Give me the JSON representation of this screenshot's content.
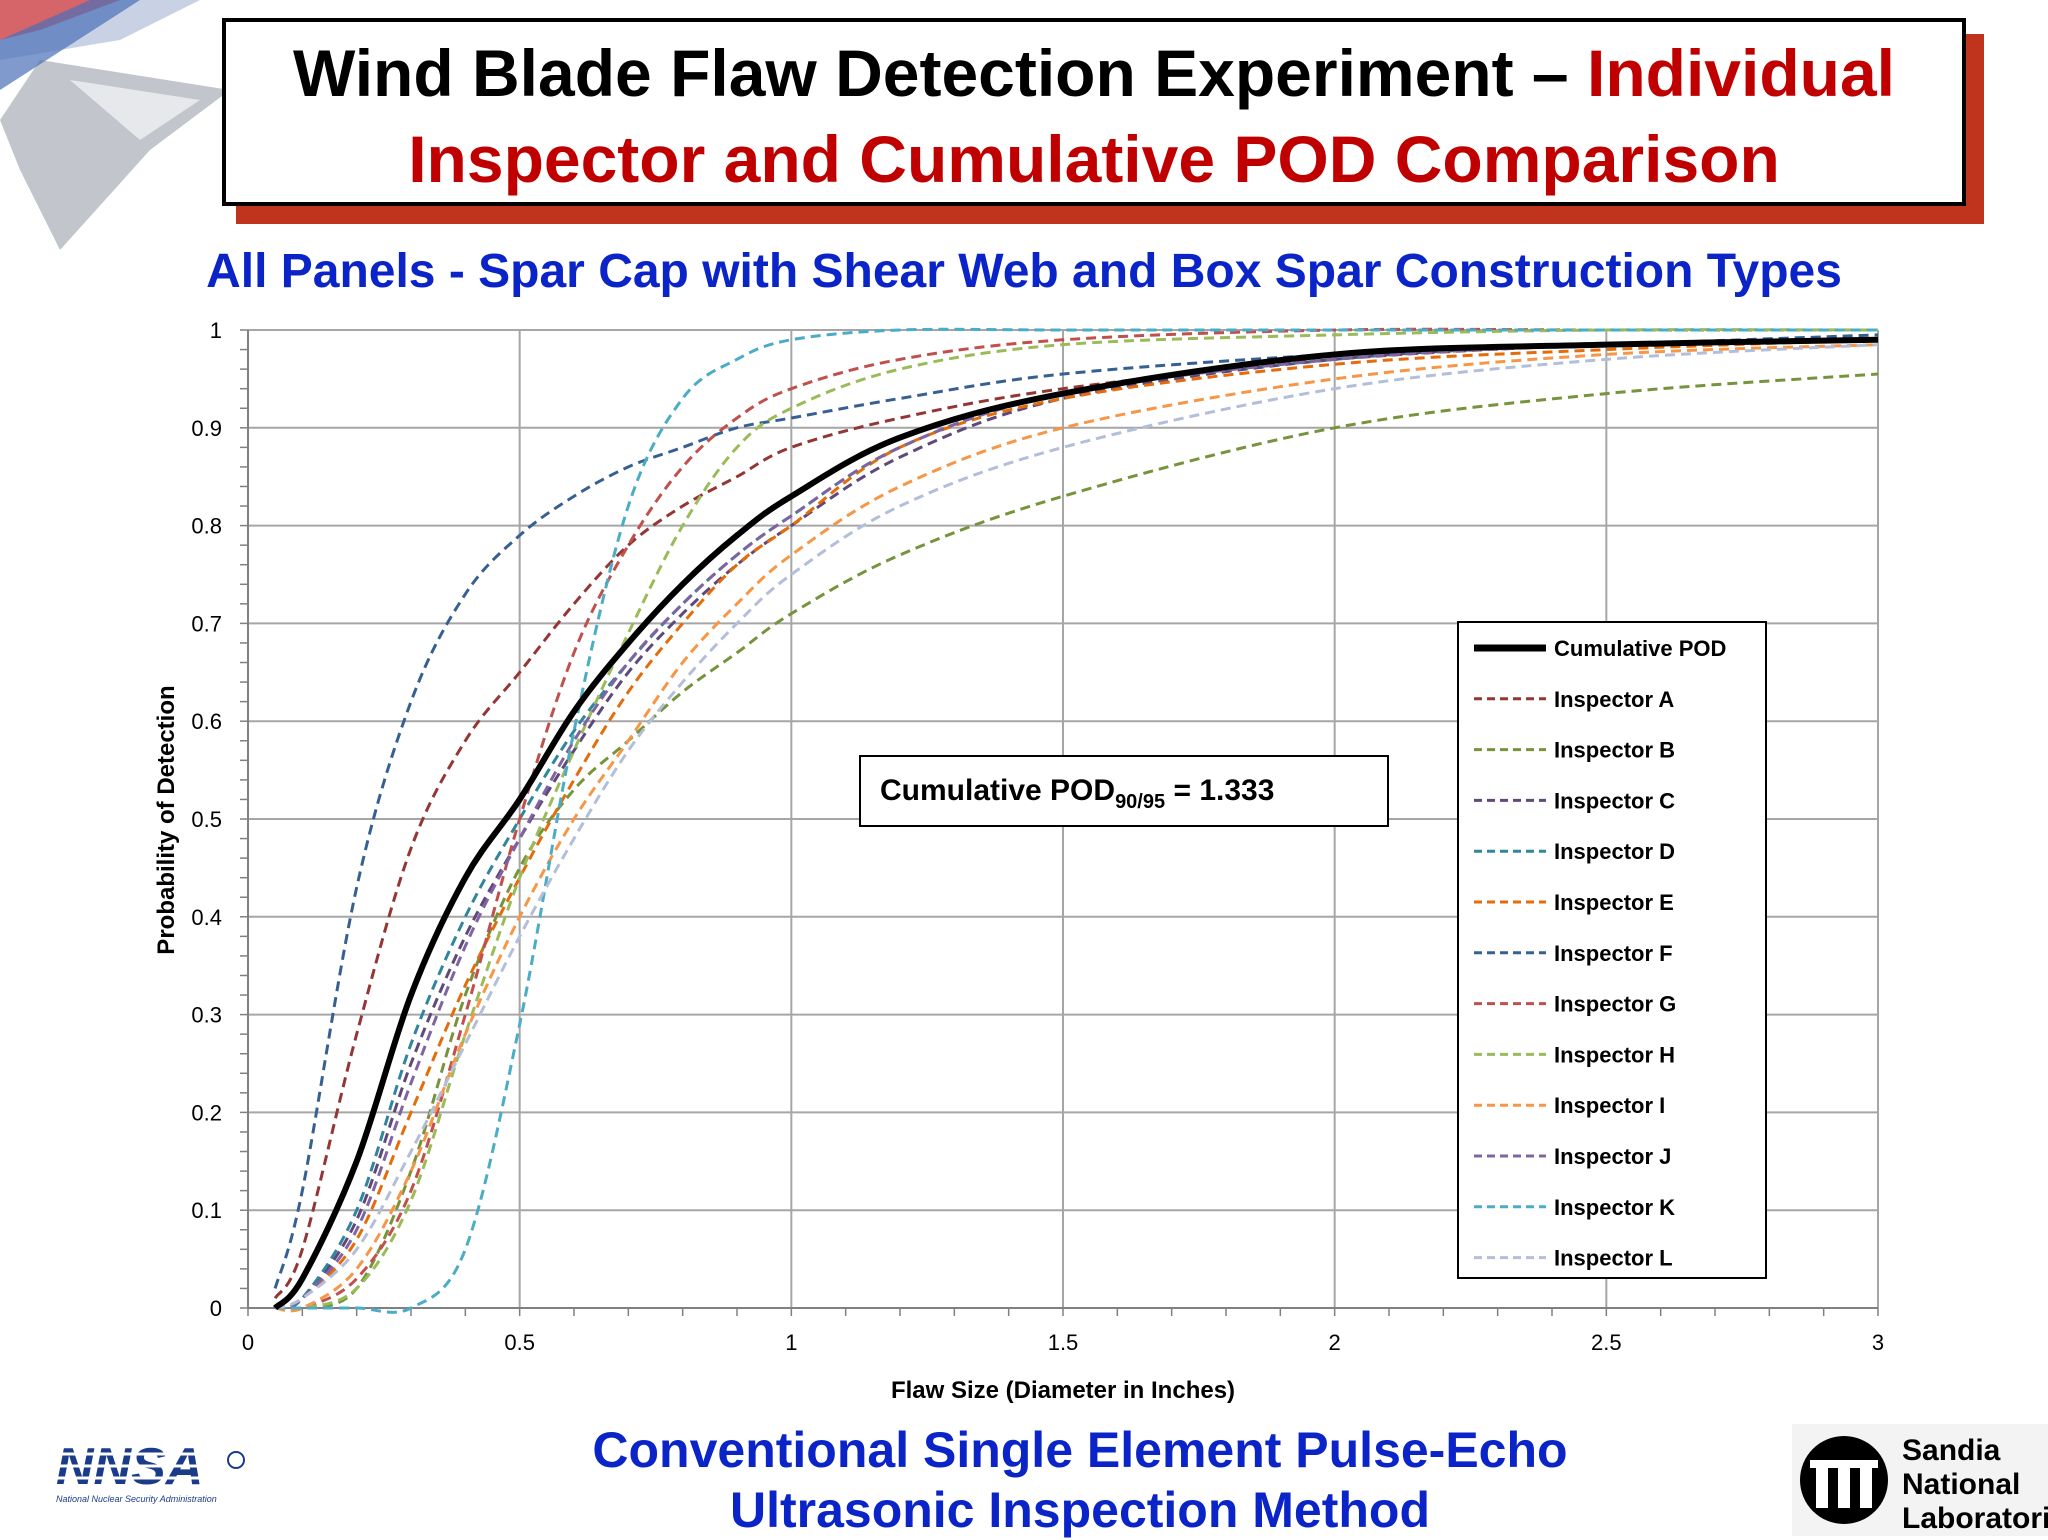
{
  "title": {
    "part1": "Wind Blade Flaw Detection Experiment – ",
    "part2": "Individual",
    "line2": "Inspector and Cumulative POD Comparison"
  },
  "subtitle": "All Panels - Spar Cap with Shear Web and Box Spar Construction Types",
  "footer": {
    "line1": "Conventional Single Element Pulse-Echo",
    "line2": "Ultrasonic Inspection Method"
  },
  "logos": {
    "left_text": "NNSA",
    "left_subtext": "National Nuclear Security Administration",
    "right_line1": "Sandia",
    "right_line2": "National",
    "right_line3": "Laboratories"
  },
  "colors": {
    "title_red": "#c00000",
    "subtitle_blue": "#0b24c8",
    "shadow_red": "#c0341d"
  },
  "chart_data": {
    "type": "line",
    "xlabel": "Flaw Size (Diameter in Inches)",
    "ylabel": "Probability of Detection",
    "xlim": [
      0,
      3
    ],
    "ylim": [
      0,
      1
    ],
    "x_ticks": [
      "0",
      "0.5",
      "1",
      "1.5",
      "2",
      "2.5",
      "3"
    ],
    "y_ticks": [
      "0",
      "0.1",
      "0.2",
      "0.3",
      "0.4",
      "0.5",
      "0.6",
      "0.7",
      "0.8",
      "0.9",
      "1"
    ],
    "grid": true,
    "legend_position": "right",
    "annotation": {
      "prefix": "Cumulative POD",
      "subscript": "90/95",
      "suffix": " = 1.333"
    },
    "x": [
      0.05,
      0.1,
      0.2,
      0.3,
      0.4,
      0.5,
      0.6,
      0.7,
      0.8,
      0.9,
      1.0,
      1.2,
      1.5,
      2.0,
      2.5,
      3.0
    ],
    "series": [
      {
        "name": "Cumulative POD",
        "color": "#000000",
        "dashed": false,
        "values": [
          0.0,
          0.03,
          0.15,
          0.32,
          0.44,
          0.52,
          0.61,
          0.68,
          0.74,
          0.79,
          0.83,
          0.89,
          0.935,
          0.975,
          0.985,
          0.99
        ]
      },
      {
        "name": "Inspector A",
        "color": "#943634",
        "dashed": true,
        "values": [
          0.01,
          0.06,
          0.28,
          0.47,
          0.58,
          0.65,
          0.72,
          0.78,
          0.82,
          0.85,
          0.88,
          0.91,
          0.94,
          0.97,
          0.985,
          0.99
        ]
      },
      {
        "name": "Inspector B",
        "color": "#77933c",
        "dashed": true,
        "values": [
          0.0,
          0.0,
          0.02,
          0.14,
          0.32,
          0.45,
          0.53,
          0.58,
          0.63,
          0.67,
          0.71,
          0.77,
          0.83,
          0.9,
          0.935,
          0.955
        ]
      },
      {
        "name": "Inspector C",
        "color": "#5f497a",
        "dashed": true,
        "values": [
          0.0,
          0.01,
          0.09,
          0.25,
          0.38,
          0.48,
          0.57,
          0.65,
          0.71,
          0.76,
          0.8,
          0.87,
          0.93,
          0.97,
          0.985,
          0.99
        ]
      },
      {
        "name": "Inspector D",
        "color": "#31859c",
        "dashed": true,
        "values": [
          0.0,
          0.01,
          0.1,
          0.27,
          0.4,
          0.5,
          0.59,
          0.66,
          0.72,
          0.77,
          0.81,
          0.88,
          0.935,
          0.97,
          0.985,
          0.99
        ]
      },
      {
        "name": "Inspector E",
        "color": "#e46c0a",
        "dashed": true,
        "values": [
          0.0,
          0.01,
          0.07,
          0.2,
          0.33,
          0.44,
          0.54,
          0.63,
          0.7,
          0.76,
          0.8,
          0.88,
          0.93,
          0.965,
          0.98,
          0.99
        ]
      },
      {
        "name": "Inspector F",
        "color": "#376092",
        "dashed": true,
        "values": [
          0.02,
          0.12,
          0.43,
          0.62,
          0.73,
          0.79,
          0.83,
          0.86,
          0.88,
          0.9,
          0.91,
          0.93,
          0.955,
          0.975,
          0.985,
          0.995
        ]
      },
      {
        "name": "Inspector G",
        "color": "#c0504d",
        "dashed": true,
        "values": [
          0.0,
          0.0,
          0.03,
          0.12,
          0.3,
          0.5,
          0.67,
          0.78,
          0.86,
          0.91,
          0.94,
          0.97,
          0.99,
          1.0,
          1.0,
          1.0
        ]
      },
      {
        "name": "Inspector H",
        "color": "#9bbb59",
        "dashed": true,
        "values": [
          0.0,
          0.0,
          0.02,
          0.11,
          0.28,
          0.44,
          0.57,
          0.69,
          0.8,
          0.88,
          0.92,
          0.96,
          0.985,
          0.995,
          1.0,
          1.0
        ]
      },
      {
        "name": "Inspector I",
        "color": "#f79646",
        "dashed": true,
        "values": [
          0.0,
          0.0,
          0.04,
          0.14,
          0.28,
          0.4,
          0.5,
          0.58,
          0.66,
          0.72,
          0.77,
          0.84,
          0.9,
          0.95,
          0.975,
          0.985
        ]
      },
      {
        "name": "Inspector J",
        "color": "#8064a2",
        "dashed": true,
        "values": [
          0.0,
          0.01,
          0.08,
          0.23,
          0.37,
          0.48,
          0.58,
          0.66,
          0.72,
          0.77,
          0.81,
          0.88,
          0.935,
          0.97,
          0.985,
          0.99
        ]
      },
      {
        "name": "Inspector K",
        "color": "#4bacc6",
        "dashed": true,
        "values": [
          0.0,
          0.0,
          0.0,
          0.0,
          0.06,
          0.29,
          0.59,
          0.82,
          0.93,
          0.97,
          0.99,
          1.0,
          1.0,
          1.0,
          1.0,
          1.0
        ]
      },
      {
        "name": "Inspector L",
        "color": "#b3bfd9",
        "dashed": true,
        "values": [
          0.0,
          0.01,
          0.06,
          0.16,
          0.27,
          0.38,
          0.48,
          0.57,
          0.64,
          0.7,
          0.75,
          0.82,
          0.88,
          0.94,
          0.97,
          0.985
        ]
      }
    ]
  }
}
